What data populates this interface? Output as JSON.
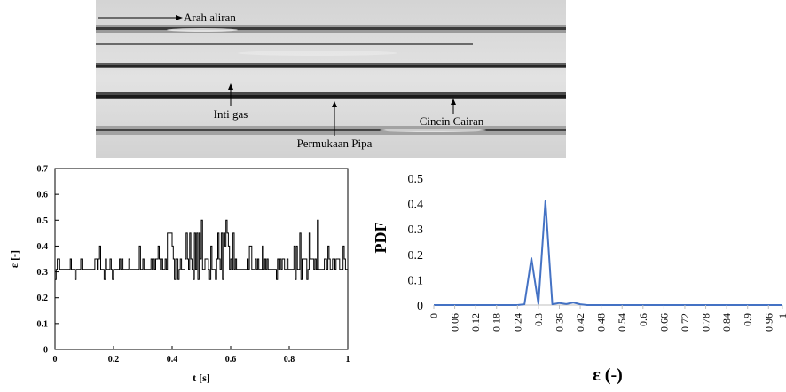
{
  "photo": {
    "labels": {
      "flow_direction": "Arah aliran",
      "gas_core": "Inti gas",
      "liquid_ring": "Cincin Cairan",
      "pipe_surface": "Permukaan Pipa"
    }
  },
  "chart_data": [
    {
      "type": "line",
      "xlabel": "t [s]",
      "ylabel": "ε [-]",
      "xlim": [
        0,
        1
      ],
      "ylim": [
        0,
        0.7
      ],
      "xticks": [
        "0",
        "0.2",
        "0.4",
        "0.6",
        "0.8",
        "1"
      ],
      "yticks": [
        "0",
        "0.1",
        "0.2",
        "0.3",
        "0.4",
        "0.5",
        "0.6",
        "0.7"
      ],
      "grid": false,
      "color": "#000000",
      "levels": [
        0.27,
        0.31,
        0.35,
        0.4,
        0.45,
        0.5
      ],
      "base_level": 0.31,
      "sample_count": 250
    },
    {
      "type": "line",
      "xlabel": "ε (-)",
      "ylabel": "PDF",
      "xlim": [
        0,
        1
      ],
      "ylim": [
        0,
        0.5
      ],
      "xticks": [
        "0",
        "0.06",
        "0.12",
        "0.18",
        "0.24",
        "0.3",
        "0.36",
        "0.42",
        "0.48",
        "0.54",
        "0.6",
        "0.66",
        "0.72",
        "0.78",
        "0.84",
        "0.9",
        "0.96",
        "1"
      ],
      "yticks": [
        "0",
        "0.1",
        "0.2",
        "0.3",
        "0.4",
        "0.5"
      ],
      "grid": false,
      "color": "#4472C4",
      "x": [
        0,
        0.02,
        0.04,
        0.06,
        0.08,
        0.1,
        0.12,
        0.14,
        0.16,
        0.18,
        0.2,
        0.22,
        0.24,
        0.26,
        0.28,
        0.3,
        0.32,
        0.34,
        0.36,
        0.38,
        0.4,
        0.42,
        0.44,
        0.46,
        0.48,
        0.5,
        0.52,
        0.54,
        0.56,
        0.58,
        0.6,
        0.62,
        0.64,
        0.66,
        0.68,
        0.7,
        0.72,
        0.74,
        0.76,
        0.78,
        0.8,
        0.82,
        0.84,
        0.86,
        0.88,
        0.9,
        0.92,
        0.94,
        0.96,
        0.98,
        1
      ],
      "y": [
        0,
        0,
        0,
        0,
        0,
        0,
        0,
        0,
        0,
        0,
        0,
        0,
        0,
        0.003,
        0.185,
        0.005,
        0.41,
        0.003,
        0.008,
        0.004,
        0.01,
        0.003,
        0,
        0,
        0,
        0,
        0,
        0,
        0,
        0,
        0,
        0,
        0,
        0,
        0,
        0,
        0,
        0,
        0,
        0,
        0,
        0,
        0,
        0,
        0,
        0,
        0,
        0,
        0,
        0,
        0
      ]
    }
  ]
}
